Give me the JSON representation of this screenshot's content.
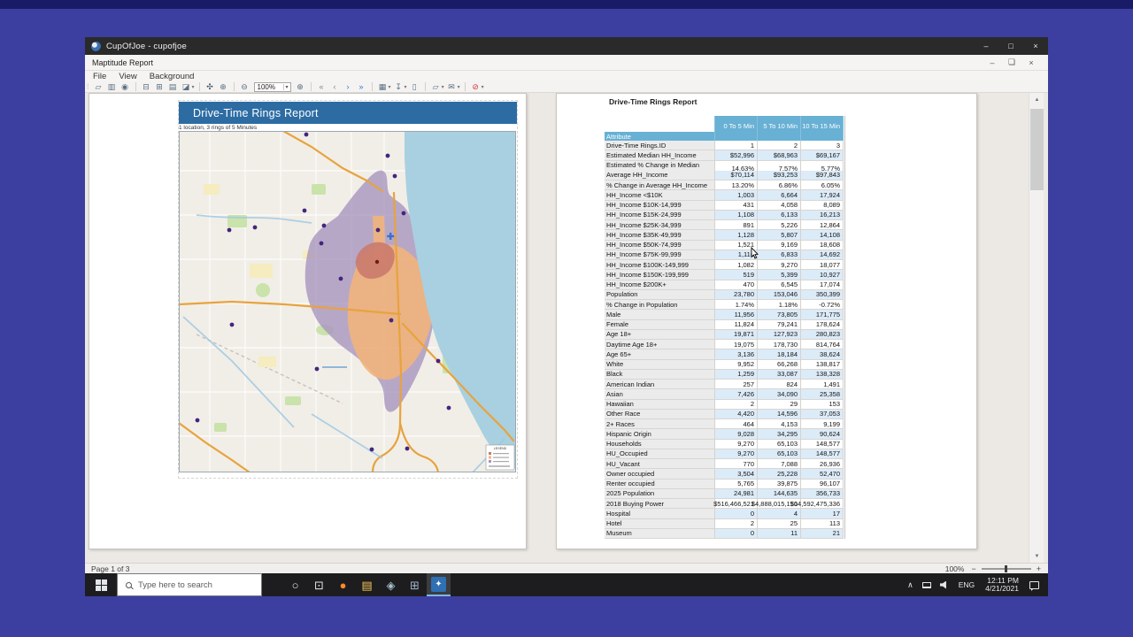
{
  "desktop": {
    "background": "#3c3f9f",
    "top_band": "#191b66"
  },
  "window": {
    "title": "CupOfJoe - cupofjoe",
    "controls": [
      {
        "name": "window-minimize-button",
        "glyph": "–"
      },
      {
        "name": "window-maximize-button",
        "glyph": "□"
      },
      {
        "name": "window-close-button",
        "glyph": "×"
      }
    ]
  },
  "mdi": {
    "title": "Maptitude Report",
    "controls": [
      {
        "name": "report-minimize-button",
        "glyph": "–"
      },
      {
        "name": "report-restore-button",
        "glyph": "❏"
      },
      {
        "name": "report-close-button",
        "glyph": "×"
      }
    ]
  },
  "menubar": {
    "items": [
      "File",
      "View",
      "Background"
    ]
  },
  "toolbar": {
    "items": [
      {
        "name": "new-report-icon",
        "glyph": "▱"
      },
      {
        "name": "panes-icon",
        "glyph": "▥"
      },
      {
        "name": "find-icon",
        "glyph": "◉"
      },
      {
        "type": "sep"
      },
      {
        "name": "print-icon",
        "glyph": "⊟"
      },
      {
        "name": "print-setup-icon",
        "glyph": "⊞"
      },
      {
        "name": "print-preview-icon",
        "glyph": "▤"
      },
      {
        "name": "select-tool-icon",
        "glyph": "◪",
        "dropdown": true
      },
      {
        "type": "sep"
      },
      {
        "name": "pan-tool-icon",
        "glyph": "✣",
        "color": "#3d4d5c"
      },
      {
        "name": "zoom-in-tool-icon",
        "glyph": "⊕"
      },
      {
        "type": "sep"
      },
      {
        "name": "zoom-out-tool-icon",
        "glyph": "⊖"
      },
      {
        "type": "combo",
        "name": "zoom-level-combo",
        "value": "100%"
      },
      {
        "name": "zoom-window-icon",
        "glyph": "⊕"
      },
      {
        "type": "sep"
      },
      {
        "name": "first-page-icon",
        "glyph": "«",
        "color": "#8a8a8a"
      },
      {
        "name": "previous-page-icon",
        "glyph": "‹",
        "color": "#8a8a8a"
      },
      {
        "name": "next-page-icon",
        "glyph": "›",
        "color": "#2f7fd6"
      },
      {
        "name": "last-page-icon",
        "glyph": "»",
        "color": "#2f7fd6"
      },
      {
        "type": "sep"
      },
      {
        "name": "report-layout-icon",
        "glyph": "▦",
        "dropdown": true
      },
      {
        "name": "export-icon",
        "glyph": "↧",
        "dropdown": true
      },
      {
        "name": "document-icon",
        "glyph": "▯"
      },
      {
        "type": "sep"
      },
      {
        "name": "save-as-icon",
        "glyph": "▱",
        "dropdown": true
      },
      {
        "name": "email-icon",
        "glyph": "✉",
        "dropdown": true
      },
      {
        "type": "sep"
      },
      {
        "name": "close-report-icon",
        "glyph": "⊘",
        "color": "#d03a3a",
        "dropdown": true
      }
    ]
  },
  "page1": {
    "header": "Drive-Time Rings Report",
    "subtitle": "1 location, 3 rings of 5 Minutes"
  },
  "page2": {
    "title": "Drive-Time Rings Report"
  },
  "report_table": {
    "corner_label": "Attribute",
    "columns": [
      "0 To 5 Min",
      "5 To 10 Min",
      "10 To 15 Min"
    ],
    "rows": [
      {
        "attribute": "Drive-Time Rings.ID",
        "values": [
          "1",
          "2",
          "3"
        ]
      },
      {
        "attribute": "Estimated Median HH_Income",
        "values": [
          "$52,996",
          "$68,963",
          "$69,167"
        ]
      },
      {
        "attribute": "Estimated % Change in Median HH_Income",
        "values": [
          "14.63%",
          "7.57%",
          "5.77%"
        ]
      },
      {
        "attribute": "Average HH_Income",
        "values": [
          "$70,114",
          "$93,253",
          "$97,843"
        ]
      },
      {
        "attribute": "% Change in Average HH_Income",
        "values": [
          "13.20%",
          "6.86%",
          "6.05%"
        ]
      },
      {
        "attribute": "HH_Income <$10K",
        "values": [
          "1,003",
          "6,664",
          "17,924"
        ]
      },
      {
        "attribute": "HH_Income $10K-14,999",
        "values": [
          "431",
          "4,058",
          "8,089"
        ]
      },
      {
        "attribute": "HH_Income $15K-24,999",
        "values": [
          "1,108",
          "6,133",
          "16,213"
        ]
      },
      {
        "attribute": "HH_Income $25K-34,999",
        "values": [
          "891",
          "5,226",
          "12,864"
        ]
      },
      {
        "attribute": "HH_Income $35K-49,999",
        "values": [
          "1,128",
          "5,807",
          "14,108"
        ]
      },
      {
        "attribute": "HH_Income $50K-74,999",
        "values": [
          "1,521",
          "9,169",
          "18,608"
        ]
      },
      {
        "attribute": "HH_Income $75K-99,999",
        "values": [
          "1,116",
          "6,833",
          "14,692"
        ]
      },
      {
        "attribute": "HH_Income $100K-149,999",
        "values": [
          "1,082",
          "9,270",
          "18,077"
        ]
      },
      {
        "attribute": "HH_Income $150K-199,999",
        "values": [
          "519",
          "5,399",
          "10,927"
        ]
      },
      {
        "attribute": "HH_Income $200K+",
        "values": [
          "470",
          "6,545",
          "17,074"
        ]
      },
      {
        "attribute": "Population",
        "values": [
          "23,780",
          "153,046",
          "350,399"
        ]
      },
      {
        "attribute": "% Change in Population",
        "values": [
          "1.74%",
          "1.18%",
          "-0.72%"
        ]
      },
      {
        "attribute": "Male",
        "values": [
          "11,956",
          "73,805",
          "171,775"
        ]
      },
      {
        "attribute": "Female",
        "values": [
          "11,824",
          "79,241",
          "178,624"
        ]
      },
      {
        "attribute": "Age 18+",
        "values": [
          "19,871",
          "127,923",
          "280,823"
        ]
      },
      {
        "attribute": "Daytime Age 18+",
        "values": [
          "19,075",
          "178,730",
          "814,764"
        ]
      },
      {
        "attribute": "Age 65+",
        "values": [
          "3,136",
          "18,184",
          "38,624"
        ]
      },
      {
        "attribute": "White",
        "values": [
          "9,952",
          "66,268",
          "138,817"
        ]
      },
      {
        "attribute": "Black",
        "values": [
          "1,259",
          "33,087",
          "138,328"
        ]
      },
      {
        "attribute": "American Indian",
        "values": [
          "257",
          "824",
          "1,491"
        ]
      },
      {
        "attribute": "Asian",
        "values": [
          "7,426",
          "34,090",
          "25,358"
        ]
      },
      {
        "attribute": "Hawaiian",
        "values": [
          "2",
          "29",
          "153"
        ]
      },
      {
        "attribute": "Other Race",
        "values": [
          "4,420",
          "14,596",
          "37,053"
        ]
      },
      {
        "attribute": "2+ Races",
        "values": [
          "464",
          "4,153",
          "9,199"
        ]
      },
      {
        "attribute": "Hispanic Origin",
        "values": [
          "9,028",
          "34,295",
          "90,624"
        ]
      },
      {
        "attribute": "Households",
        "values": [
          "9,270",
          "65,103",
          "148,577"
        ]
      },
      {
        "attribute": "HU_Occupied",
        "values": [
          "9,270",
          "65,103",
          "148,577"
        ]
      },
      {
        "attribute": "HU_Vacant",
        "values": [
          "770",
          "7,088",
          "26,936"
        ]
      },
      {
        "attribute": "Owner occupied",
        "values": [
          "3,504",
          "25,228",
          "52,470"
        ]
      },
      {
        "attribute": "Renter occupied",
        "values": [
          "5,765",
          "39,875",
          "96,107"
        ]
      },
      {
        "attribute": "2025 Population",
        "values": [
          "24,981",
          "144,635",
          "356,733"
        ]
      },
      {
        "attribute": "2018 Buying Power",
        "values": [
          "$516,466,521",
          "$4,888,015,150",
          "$14,592,475,336"
        ]
      },
      {
        "attribute": "Hospital",
        "values": [
          "0",
          "4",
          "17"
        ]
      },
      {
        "attribute": "Hotel",
        "values": [
          "2",
          "25",
          "113"
        ]
      },
      {
        "attribute": "Museum",
        "values": [
          "0",
          "11",
          "21"
        ]
      }
    ]
  },
  "map": {
    "legend_title": "LEGEND",
    "colors": {
      "land": "#f1eee7",
      "water": "#a8d0e0",
      "park": "#c9e3ab",
      "road_major": "#e8a33d",
      "marker": "#43257e",
      "site": "#731a10",
      "stream": "#9cc7e2"
    },
    "rings": [
      {
        "label": "0 To 5 Min",
        "color": "#cb7a6d"
      },
      {
        "label": "5 To 10 Min",
        "color": "#f2b47a"
      },
      {
        "label": "10 To 15 Min",
        "color": "#a793be"
      }
    ]
  },
  "statusbar": {
    "page_info": "Page 1 of 3",
    "zoom_label": "100%"
  },
  "taskbar": {
    "search_placeholder": "Type here to search",
    "apps": [
      {
        "name": "cortana-icon",
        "glyph": "○",
        "color": "#e3e6e9"
      },
      {
        "name": "task-view-icon",
        "glyph": "⊡",
        "color": "#e3e6e9"
      },
      {
        "name": "firefox-icon",
        "glyph": "●",
        "color": "#ff8a2a"
      },
      {
        "name": "file-explorer-icon",
        "glyph": "▤",
        "color": "#f7c65a"
      },
      {
        "name": "security-app-icon",
        "glyph": "◈",
        "color": "#a8bfca"
      },
      {
        "name": "remote-desktop-icon",
        "glyph": "⊞",
        "color": "#9fb3c8"
      },
      {
        "name": "maptitude-app-icon",
        "glyph": "✦",
        "active": true
      }
    ],
    "tray": {
      "chevron_glyph": "∧",
      "lang": "ENG",
      "time": "12:11 PM",
      "date": "4/21/2021"
    }
  }
}
